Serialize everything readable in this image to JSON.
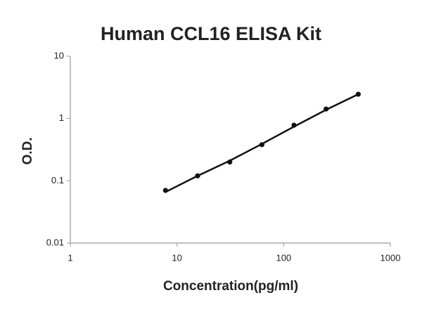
{
  "chart_data": {
    "type": "scatter",
    "title": "Human CCL16 ELISA Kit",
    "x_label": "Concentration(pg/ml)",
    "y_label": "O.D.",
    "xscale": "log",
    "yscale": "log",
    "xlim": [
      1,
      1000
    ],
    "ylim": [
      0.01,
      10
    ],
    "xticks": [
      1,
      10,
      100,
      1000
    ],
    "yticks": [
      0.01,
      0.1,
      1,
      10
    ],
    "series": [
      {
        "color": "#111111",
        "mode": "markers",
        "x": [
          7.8,
          15.6,
          31.25,
          62.5,
          125,
          250,
          500
        ],
        "values": [
          0.07,
          0.12,
          0.2,
          0.38,
          0.78,
          1.42,
          2.45
        ]
      },
      {
        "color": "#111111",
        "mode": "line",
        "x": [
          7.8,
          15.6,
          31.25,
          62.5,
          125,
          250,
          500
        ],
        "values": [
          0.066,
          0.12,
          0.21,
          0.39,
          0.74,
          1.38,
          2.45
        ]
      }
    ]
  }
}
